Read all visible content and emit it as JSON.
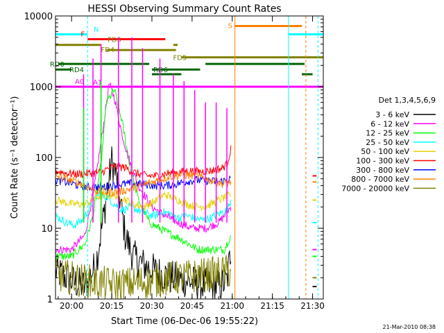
{
  "chart_data": {
    "type": "line",
    "title": "HESSI Observing Summary Count Rates",
    "xlabel": "Start Time (06-Dec-06 19:55:22)",
    "ylabel": "Count Rate (s⁻¹ detector⁻¹)",
    "y_scale": "log",
    "xlim": [
      -1,
      99
    ],
    "ylim": [
      1,
      10000
    ],
    "x_ticks": [
      {
        "t": 5,
        "label": "20:00"
      },
      {
        "t": 20,
        "label": "20:15"
      },
      {
        "t": 35,
        "label": "20:30"
      },
      {
        "t": 50,
        "label": "20:45"
      },
      {
        "t": 65,
        "label": "21:00"
      },
      {
        "t": 80,
        "label": "21:15"
      },
      {
        "t": 95,
        "label": "21:30"
      }
    ],
    "y_ticks": [
      {
        "v": 1,
        "label": "1"
      },
      {
        "v": 10,
        "label": "10"
      },
      {
        "v": 100,
        "label": "100"
      },
      {
        "v": 1000,
        "label": "1000"
      },
      {
        "v": 10000,
        "label": "10000"
      }
    ],
    "legend": {
      "title": "Det 1,3,4,5,6,9",
      "entries": [
        {
          "label": "3 - 6 keV",
          "color": "#000000"
        },
        {
          "label": "6 - 12 keV",
          "color": "#ff00ff"
        },
        {
          "label": "12 - 25 keV",
          "color": "#00ff00"
        },
        {
          "label": "25 - 50 keV",
          "color": "#00ffff"
        },
        {
          "label": "50 - 100 keV",
          "color": "#e6d200"
        },
        {
          "label": "100 - 300 keV",
          "color": "#ff0000"
        },
        {
          "label": "300 - 800 keV",
          "color": "#0000ff"
        },
        {
          "label": "800 - 7000 keV",
          "color": "#ff8000"
        },
        {
          "label": "7000 - 20000 keV",
          "color": "#808000"
        }
      ]
    },
    "series": [
      {
        "name": "3 - 6 keV",
        "color": "#000000",
        "points": [
          [
            -1,
            2.5
          ],
          [
            5,
            1.8
          ],
          [
            10,
            1.5
          ],
          [
            14,
            3
          ],
          [
            17,
            15
          ],
          [
            20,
            90
          ],
          [
            22,
            50
          ],
          [
            25,
            8
          ],
          [
            28,
            4
          ],
          [
            32,
            3
          ],
          [
            36,
            2.5
          ],
          [
            42,
            2
          ],
          [
            48,
            1.8
          ],
          [
            54,
            1.6
          ],
          [
            60,
            1.5
          ],
          [
            63,
            1.8
          ],
          [
            64.5,
            5
          ]
        ]
      },
      {
        "name": "6 - 12 keV",
        "color": "#ff00ff",
        "points": [
          [
            -1,
            5
          ],
          [
            5,
            5
          ],
          [
            10,
            8
          ],
          [
            14,
            50
          ],
          [
            17,
            300
          ],
          [
            19,
            1100
          ],
          [
            21,
            700
          ],
          [
            24,
            200
          ],
          [
            27,
            80
          ],
          [
            30,
            40
          ],
          [
            35,
            20
          ],
          [
            40,
            15
          ],
          [
            45,
            12
          ],
          [
            50,
            10
          ],
          [
            55,
            10
          ],
          [
            60,
            12
          ],
          [
            64.5,
            20
          ]
        ]
      },
      {
        "name": "12 - 25 keV",
        "color": "#00ff00",
        "points": [
          [
            -1,
            4
          ],
          [
            5,
            4
          ],
          [
            10,
            6
          ],
          [
            13,
            15
          ],
          [
            16,
            80
          ],
          [
            18,
            600
          ],
          [
            21,
            900
          ],
          [
            24,
            300
          ],
          [
            27,
            70
          ],
          [
            30,
            25
          ],
          [
            34,
            12
          ],
          [
            40,
            9
          ],
          [
            46,
            7
          ],
          [
            52,
            5
          ],
          [
            58,
            5
          ],
          [
            62,
            5
          ],
          [
            64.5,
            8
          ]
        ]
      },
      {
        "name": "25 - 50 keV",
        "color": "#00ffff",
        "points": [
          [
            -1,
            15
          ],
          [
            3,
            12
          ],
          [
            6,
            11
          ],
          [
            9,
            13
          ],
          [
            12,
            20
          ],
          [
            15,
            30
          ],
          [
            18,
            28
          ],
          [
            21,
            22
          ],
          [
            24,
            18
          ],
          [
            27,
            20
          ],
          [
            30,
            18
          ],
          [
            33,
            16
          ],
          [
            36,
            15
          ],
          [
            39,
            17
          ],
          [
            42,
            16
          ],
          [
            45,
            14
          ],
          [
            48,
            15
          ],
          [
            51,
            14
          ],
          [
            54,
            13
          ],
          [
            57,
            14
          ],
          [
            60,
            16
          ],
          [
            63,
            18
          ],
          [
            64.5,
            25
          ]
        ]
      },
      {
        "name": "50 - 100 keV",
        "color": "#e6d200",
        "points": [
          [
            -1,
            25
          ],
          [
            5,
            22
          ],
          [
            10,
            22
          ],
          [
            15,
            28
          ],
          [
            20,
            30
          ],
          [
            24,
            27
          ],
          [
            28,
            22
          ],
          [
            32,
            20
          ],
          [
            36,
            24
          ],
          [
            40,
            30
          ],
          [
            44,
            26
          ],
          [
            48,
            22
          ],
          [
            52,
            20
          ],
          [
            56,
            21
          ],
          [
            60,
            25
          ],
          [
            64.5,
            30
          ]
        ]
      },
      {
        "name": "100 - 300 keV",
        "color": "#ff0000",
        "points": [
          [
            -1,
            65
          ],
          [
            3,
            60
          ],
          [
            7,
            58
          ],
          [
            12,
            60
          ],
          [
            16,
            62
          ],
          [
            19,
            70
          ],
          [
            21,
            75
          ],
          [
            25,
            72
          ],
          [
            29,
            60
          ],
          [
            33,
            55
          ],
          [
            37,
            55
          ],
          [
            41,
            60
          ],
          [
            45,
            62
          ],
          [
            49,
            65
          ],
          [
            53,
            63
          ],
          [
            57,
            65
          ],
          [
            61,
            70
          ],
          [
            63,
            80
          ],
          [
            64.5,
            130
          ]
        ]
      },
      {
        "name": "300 - 800 keV",
        "color": "#0000ff",
        "points": [
          [
            -1,
            48
          ],
          [
            4,
            44
          ],
          [
            8,
            40
          ],
          [
            12,
            38
          ],
          [
            16,
            38
          ],
          [
            20,
            40
          ],
          [
            24,
            42
          ],
          [
            28,
            43
          ],
          [
            32,
            42
          ],
          [
            36,
            40
          ],
          [
            40,
            40
          ],
          [
            44,
            42
          ],
          [
            48,
            46
          ],
          [
            52,
            48
          ],
          [
            56,
            47
          ],
          [
            60,
            45
          ],
          [
            64.5,
            50
          ]
        ]
      },
      {
        "name": "800 - 7000 keV",
        "color": "#ff8000",
        "points": [
          [
            -1,
            55
          ],
          [
            3,
            50
          ],
          [
            7,
            45
          ],
          [
            11,
            38
          ],
          [
            15,
            33
          ],
          [
            19,
            32
          ],
          [
            23,
            33
          ],
          [
            27,
            36
          ],
          [
            31,
            40
          ],
          [
            35,
            45
          ],
          [
            39,
            50
          ],
          [
            43,
            55
          ],
          [
            47,
            57
          ],
          [
            51,
            55
          ],
          [
            55,
            50
          ],
          [
            59,
            45
          ],
          [
            62,
            42
          ],
          [
            64.5,
            45
          ]
        ]
      },
      {
        "name": "7000 - 20000 keV",
        "color": "#808000",
        "points": [
          [
            -1,
            2.2
          ],
          [
            5,
            2
          ],
          [
            10,
            1.8
          ],
          [
            15,
            1.7
          ],
          [
            20,
            1.6
          ],
          [
            25,
            1.6
          ],
          [
            30,
            1.7
          ],
          [
            35,
            1.8
          ],
          [
            40,
            1.9
          ],
          [
            45,
            2
          ],
          [
            50,
            2.1
          ],
          [
            55,
            2.2
          ],
          [
            60,
            2.3
          ],
          [
            64.5,
            2.5
          ]
        ]
      }
    ],
    "spikes": [
      {
        "t": 9.5,
        "color": "#ff00ff",
        "peak": 1500
      },
      {
        "t": 9.5,
        "color": "#00ff00",
        "peak": 500
      },
      {
        "t": 13,
        "color": "#ff00ff",
        "peak": 2500
      },
      {
        "t": 16,
        "color": "#ff00ff",
        "peak": 4000
      },
      {
        "t": 16,
        "color": "#00ff00",
        "peak": 1200
      },
      {
        "t": 22.5,
        "color": "#ff00ff",
        "peak": 5000
      },
      {
        "t": 27.5,
        "color": "#ff00ff",
        "peak": 5000
      },
      {
        "t": 31.5,
        "color": "#ff00ff",
        "peak": 3500
      },
      {
        "t": 38,
        "color": "#ff00ff",
        "peak": 2500
      },
      {
        "t": 43,
        "color": "#ff00ff",
        "peak": 1500
      },
      {
        "t": 47,
        "color": "#ff00ff",
        "peak": 1200
      },
      {
        "t": 51,
        "color": "#ff00ff",
        "peak": 900
      },
      {
        "t": 55,
        "color": "#ff00ff",
        "peak": 600
      },
      {
        "t": 59,
        "color": "#ff00ff",
        "peak": 600
      },
      {
        "t": 63,
        "color": "#ff00ff",
        "peak": 500
      }
    ],
    "segment_after_gap": {
      "t_start": 95,
      "t_end": 96.5,
      "values": [
        {
          "color": "#ff0000",
          "v": 55
        },
        {
          "color": "#ff8000",
          "v": 45
        },
        {
          "color": "#e6d200",
          "v": 25
        },
        {
          "color": "#00ffff",
          "v": 12
        },
        {
          "color": "#ff00ff",
          "v": 5
        },
        {
          "color": "#00ff00",
          "v": 4
        },
        {
          "color": "#808000",
          "v": 2
        },
        {
          "color": "#000000",
          "v": 1.5
        }
      ]
    },
    "flag_bars": [
      {
        "label": "N",
        "color": "#00ffff",
        "t0": -1,
        "t1": 11,
        "v": 5500
      },
      {
        "label": "F",
        "color": "#ff0000",
        "t0": 11,
        "t1": 40,
        "v": 4700
      },
      {
        "label": "FD3",
        "color": "#808000",
        "t0": -1,
        "t1": 16,
        "v": 3900
      },
      {
        "label": "FD4",
        "color": "#808000",
        "t0": 18,
        "t1": 44,
        "v": 3300
      },
      {
        "label": "FD5",
        "color": "#808000",
        "t0": 46,
        "t1": 99,
        "v": 2600
      },
      {
        "label": "RD0",
        "color": "#006400",
        "t0": 0,
        "t1": 34,
        "v": 2100
      },
      {
        "label": "RD4",
        "color": "#006400",
        "t0": -1,
        "t1": 5,
        "v": 1750
      },
      {
        "label": "RD6",
        "color": "#006400",
        "t0": 35,
        "t1": 53,
        "v": 1750
      },
      {
        "label": "A0",
        "color": "#ff00ff",
        "t0": -1,
        "t1": 99,
        "v": 1000
      },
      {
        "label": "S",
        "color": "#ff8000",
        "t0": 66,
        "t1": 91,
        "v": 7200
      }
    ],
    "extra_bars": [
      {
        "color": "#00ffff",
        "t0": 86,
        "t1": 99,
        "v": 5500
      },
      {
        "color": "#006400",
        "t0": 55,
        "t1": 92,
        "v": 2100
      },
      {
        "color": "#006400",
        "t0": 35,
        "t1": 46,
        "v": 1500
      },
      {
        "color": "#006400",
        "t0": 91,
        "t1": 95,
        "v": 1500
      },
      {
        "color": "#808000",
        "t0": 43,
        "t1": 44.6,
        "v": 3900
      }
    ],
    "vertical_lines": [
      {
        "t": -1,
        "color": "#00ffff",
        "dashed": false
      },
      {
        "t": 11,
        "color": "#00ffff",
        "dashed": true
      },
      {
        "t": 66,
        "color": "#ff8000",
        "dashed": false
      },
      {
        "t": 86,
        "color": "#00ffff",
        "dashed": false
      },
      {
        "t": 92.5,
        "color": "#ff8000",
        "dashed": true
      },
      {
        "t": 97,
        "color": "#00ffff",
        "dashed": true
      }
    ],
    "a1_label": {
      "label": "A1",
      "color": "#ff00ff",
      "t": 13,
      "v": 1000
    },
    "timestamp": "21-Mar-2010 08:38"
  }
}
